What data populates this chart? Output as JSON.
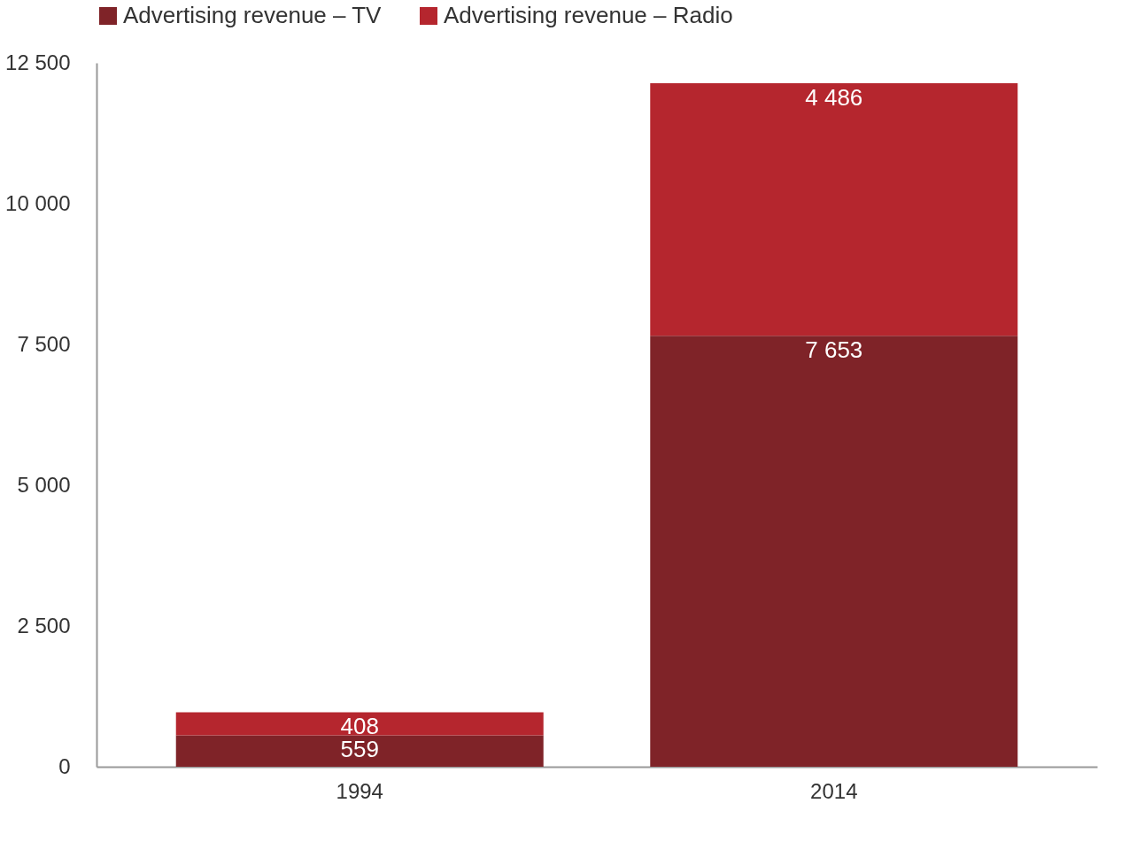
{
  "chart_data": {
    "type": "bar",
    "stacked": true,
    "categories": [
      "1994",
      "2014"
    ],
    "series": [
      {
        "name": "Advertising revenue – TV",
        "color": "#7f2328",
        "values": [
          559,
          7653
        ],
        "value_labels": [
          "559",
          "7 653"
        ]
      },
      {
        "name": "Advertising revenue – Radio",
        "color": "#b5262e",
        "values": [
          408,
          4486
        ],
        "value_labels": [
          "408",
          "4 486"
        ]
      }
    ],
    "ylim": [
      0,
      12500
    ],
    "yticks": [
      0,
      {
        "value": 2500,
        "label": "2 500"
      },
      {
        "value": 5000,
        "label": "5 000"
      },
      {
        "value": 7500,
        "label": "7 500"
      },
      {
        "value": 10000,
        "label": "10 000"
      },
      {
        "value": 12500,
        "label": "12 500"
      }
    ],
    "grid": false,
    "legend": "top left"
  }
}
